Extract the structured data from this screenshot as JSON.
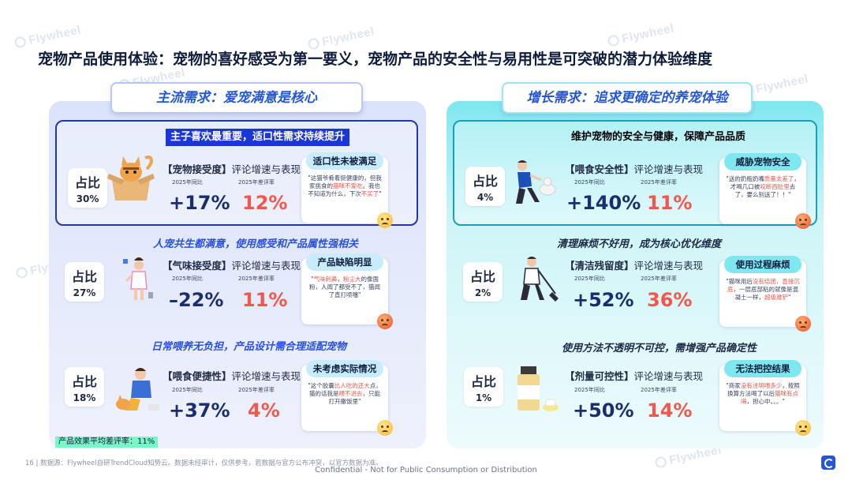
{
  "title": "宠物产品使用体验：宠物的喜好感受为第一要义，宠物产品的安全性与易用性是可突破的潜力体验维度",
  "watermark": "Flywheel",
  "left_panel": {
    "header": "主流需求：爱宠满意是核心",
    "highlight_title": "主子喜欢最重要，适口性需求持续提升",
    "share_label": "占比",
    "blocks": [
      {
        "section_title": "",
        "share": "30%",
        "illustration": "cat-in-box",
        "metric_bracket": "【宠物接受度】",
        "metric_suffix": "评论增速与表现",
        "growth_label": "2025年同比",
        "bad_label": "2025年差评率",
        "growth": "+17%",
        "bad_rate": "12%",
        "bubble_title": "适口性未被满足",
        "bubble_pre": "\"这猫爷肴着挺健康的，但我家挑食的",
        "bubble_hot": "猫咪不爱吃",
        "bubble_post": "。我也不知道为什么，下次",
        "bubble_hot2": "不买了",
        "bubble_end": "\"",
        "emoji": "yellow"
      },
      {
        "section_title": "人宠共生都满意，使用感受和产品属性强相关",
        "share": "27%",
        "illustration": "person-holding-nose",
        "metric_bracket": "【气味接受度】",
        "metric_suffix": "评论增速与表现",
        "growth_label": "2025年同比",
        "bad_label": "2025年差评率",
        "growth": "–22%",
        "bad_rate": "11%",
        "bubble_title": "产品缺陷明显",
        "bubble_pre": "\"",
        "bubble_hot": "气味刺鼻",
        "bubble_post": "，",
        "bubble_hot2": "粉尘大",
        "bubble_end": "的像面粉，人闻了都受不了，猫闻了直打喷嚏\"",
        "emoji": "orange"
      },
      {
        "section_title": "日常喂养无负担，产品设计需合理适配宠物",
        "share": "18%",
        "illustration": "person-feeding-cat",
        "metric_bracket": "【喂食便捷性】",
        "metric_suffix": "评论增速与表现",
        "growth_label": "2025年同比",
        "bad_label": "2025年差评率",
        "growth": "+37%",
        "bad_rate": "4%",
        "bubble_title": "未考虑实际情况",
        "bubble_pre": "\"这个胶囊",
        "bubble_hot": "比人吃的还大",
        "bubble_post": "点，猫的话我是",
        "bubble_hot2": "喂不进去",
        "bubble_end": "，只能打开撒饭里\"",
        "emoji": "yellow"
      }
    ]
  },
  "right_panel": {
    "header": "增长需求：追求更确定的养宠体验",
    "highlight_title": "维护宠物的安全与健康，保障产品品质",
    "share_label": "占比",
    "blocks": [
      {
        "section_title": "",
        "share": "4%",
        "illustration": "person-with-dog",
        "metric_bracket": "【喂食安全性】",
        "metric_suffix": "评论增速与表现",
        "growth_label": "2025年同比",
        "bad_label": "2025年差评率",
        "growth": "+140%",
        "bad_rate": "11%",
        "bubble_title": "威胁宠物安全",
        "bubble_pre": "\"送的奶瓶奶嘴",
        "bubble_hot": "质量太差了",
        "bubble_post": "，才喝几口被",
        "bubble_hot2": "咬断西肚里",
        "bubble_end": "去了，要么别送了！！\"",
        "emoji": "orange"
      },
      {
        "section_title": "清理麻烦不好用，成为核心优化维度",
        "share": "2%",
        "illustration": "person-sweeping",
        "metric_bracket": "【清洁残留度】",
        "metric_suffix": "评论增速与表现",
        "growth_label": "2025年同比",
        "bad_label": "2025年差评率",
        "growth": "+52%",
        "bad_rate": "36%",
        "bubble_title": "使用过程麻烦",
        "bubble_pre": "\"猫咪用后",
        "bubble_hot": "没有结团，直接沉底",
        "bubble_post": "，一层底部粘的就像是混凝土一样，",
        "bubble_hot2": "超级难铲",
        "bubble_end": "\"",
        "emoji": "orange"
      },
      {
        "section_title": "使用方法不透明不可控，需增强产品确定性",
        "share": "1%",
        "illustration": "medicine-bottle",
        "metric_bracket": "【剂量可控性】",
        "metric_suffix": "评论增速与表现",
        "growth_label": "2025年同比",
        "bad_label": "2025年差评率",
        "growth": "+50%",
        "bad_rate": "14%",
        "bubble_title": "无法把控结果",
        "bubble_pre": "\"商家",
        "bubble_hot": "没有注明喂多少",
        "bubble_post": "，按照换算方法喝了以后",
        "bubble_hot2": "猫咪有点嗝",
        "bubble_end": "，担心中。。。\"",
        "emoji": "yellow"
      }
    ]
  },
  "avg_note": "产品效果平均差评率：11%",
  "footer": "16  |  数据源：Flywheel自研TrendCloud知势云。数据未经审计，仅供参考，若数据与官方公布冲突，以官方数据为准。",
  "confidential": "Confidential - Not for Public Consumption or Distribution",
  "colors": {
    "accent_blue": "#2456d6",
    "accent_cyan": "#34e0ef",
    "red": "#f2574b",
    "navy": "#1a2d6e",
    "green_note": "#7af7c6"
  }
}
